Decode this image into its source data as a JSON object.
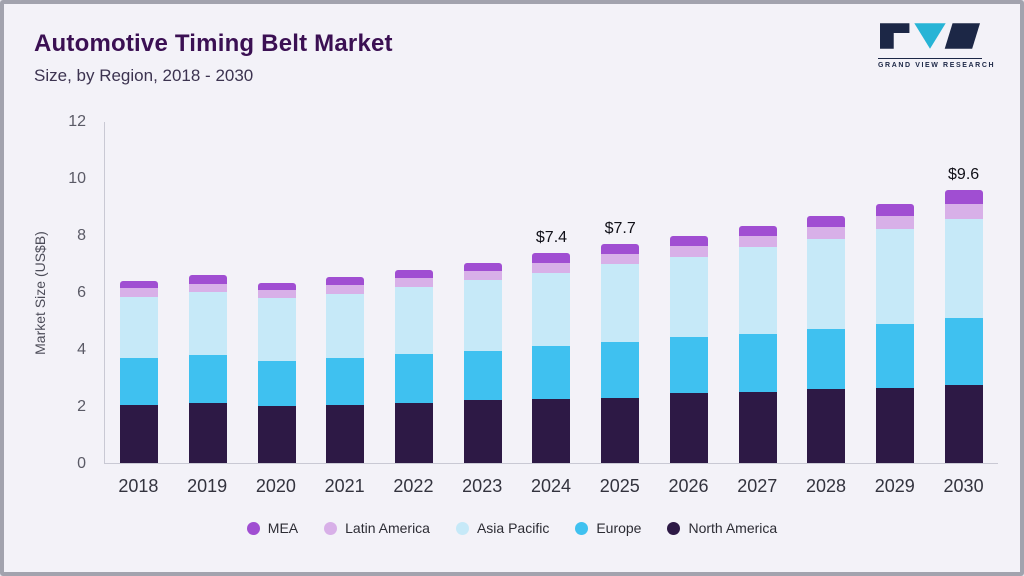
{
  "header": {
    "title": "Automotive Timing Belt Market",
    "subtitle": "Size, by Region, 2018 - 2030",
    "logo_text": "GRAND VIEW RESEARCH"
  },
  "chart_data": {
    "type": "bar",
    "stacked": true,
    "title": "Automotive Timing Belt Market Size, by Region, 2018 - 2030",
    "xlabel": "",
    "ylabel": "Market Size (US$B)",
    "ylim": [
      0,
      12
    ],
    "yticks": [
      0,
      2,
      4,
      6,
      8,
      10,
      12
    ],
    "grid": false,
    "legend_position": "bottom",
    "categories": [
      "2018",
      "2019",
      "2020",
      "2021",
      "2022",
      "2023",
      "2024",
      "2025",
      "2026",
      "2027",
      "2028",
      "2029",
      "2030"
    ],
    "series": [
      {
        "name": "North America",
        "color": "#2d1945",
        "values": [
          2.05,
          2.1,
          2.0,
          2.05,
          2.1,
          2.2,
          2.25,
          2.3,
          2.45,
          2.5,
          2.6,
          2.65,
          2.75
        ]
      },
      {
        "name": "Europe",
        "color": "#3fc1f0",
        "values": [
          1.65,
          1.7,
          1.6,
          1.65,
          1.75,
          1.75,
          1.85,
          1.95,
          2.0,
          2.05,
          2.1,
          2.25,
          2.35
        ]
      },
      {
        "name": "Asia Pacific",
        "color": "#c6e9f8",
        "values": [
          2.15,
          2.2,
          2.2,
          2.25,
          2.35,
          2.5,
          2.6,
          2.75,
          2.8,
          3.05,
          3.2,
          3.35,
          3.5
        ]
      },
      {
        "name": "Latin America",
        "color": "#d8b0e8",
        "values": [
          0.3,
          0.3,
          0.3,
          0.3,
          0.3,
          0.3,
          0.35,
          0.35,
          0.4,
          0.4,
          0.4,
          0.45,
          0.5
        ]
      },
      {
        "name": "MEA",
        "color": "#a04ed2",
        "values": [
          0.25,
          0.3,
          0.25,
          0.3,
          0.3,
          0.3,
          0.35,
          0.35,
          0.35,
          0.35,
          0.4,
          0.4,
          0.5
        ]
      }
    ],
    "total_labels": {
      "2024": "$7.4",
      "2025": "$7.7",
      "2030": "$9.6"
    },
    "legend_order": [
      "MEA",
      "Latin America",
      "Asia Pacific",
      "Europe",
      "North America"
    ]
  }
}
